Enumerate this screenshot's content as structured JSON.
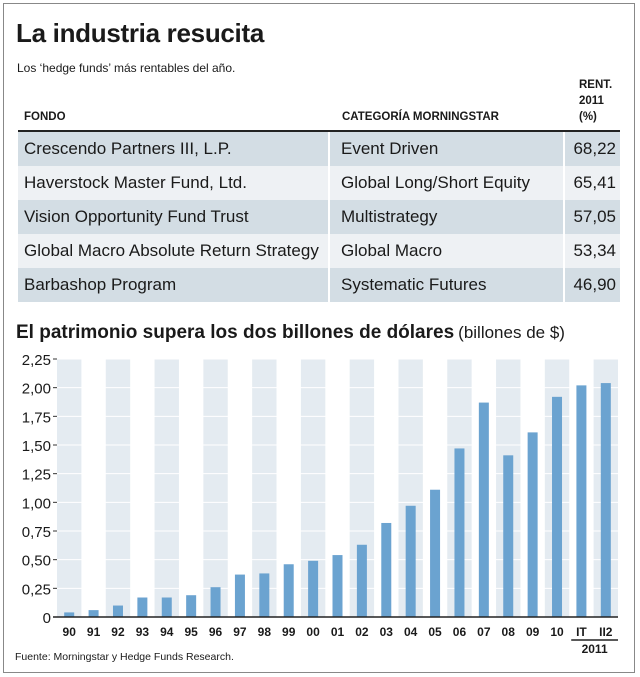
{
  "header": {
    "title": "La industria resucita",
    "subtitle": "Los ‘hedge funds’ más rentables del año."
  },
  "table": {
    "headers": {
      "fondo": "FONDO",
      "categoria": "CATEGORÍA MORNINGSTAR",
      "rent_line1": "RENT.",
      "rent_line2": "2011",
      "rent_line3": "(%)"
    },
    "rows": [
      {
        "fondo": "Crescendo Partners III, L.P.",
        "categoria": "Event Driven",
        "rent": "68,22"
      },
      {
        "fondo": "Haverstock Master Fund, Ltd.",
        "categoria": "Global Long/Short Equity",
        "rent": "65,41"
      },
      {
        "fondo": "Vision Opportunity Fund Trust",
        "categoria": "Multistrategy",
        "rent": "57,05"
      },
      {
        "fondo": "Global Macro Absolute Return Strategy",
        "categoria": "Global Macro",
        "rent": "53,34"
      },
      {
        "fondo": "Barbashop Program",
        "categoria": "Systematic Futures",
        "rent": "46,90"
      }
    ]
  },
  "chart_data": {
    "type": "bar",
    "title": "El patrimonio supera los dos billones de dólares",
    "units": "(billones de $)",
    "categories": [
      "90",
      "91",
      "92",
      "93",
      "94",
      "95",
      "96",
      "97",
      "98",
      "99",
      "00",
      "01",
      "02",
      "03",
      "04",
      "05",
      "06",
      "07",
      "08",
      "09",
      "10",
      "IT",
      "II2"
    ],
    "values": [
      0.04,
      0.06,
      0.1,
      0.17,
      0.17,
      0.19,
      0.26,
      0.37,
      0.38,
      0.46,
      0.49,
      0.54,
      0.63,
      0.82,
      0.97,
      1.11,
      1.47,
      1.87,
      1.41,
      1.61,
      1.92,
      2.02,
      2.04
    ],
    "ylim": [
      0,
      2.25
    ],
    "yticks": [
      "0",
      "0,25",
      "0,50",
      "0,75",
      "1,00",
      "1,25",
      "1,50",
      "1,75",
      "2,00",
      "2,25"
    ],
    "year_group_label": "2011",
    "bar_color": "#6ba3d0",
    "band_color": "#e4ebf1"
  },
  "footer": {
    "source": "Fuente: Morningstar y Hedge Funds Research."
  }
}
